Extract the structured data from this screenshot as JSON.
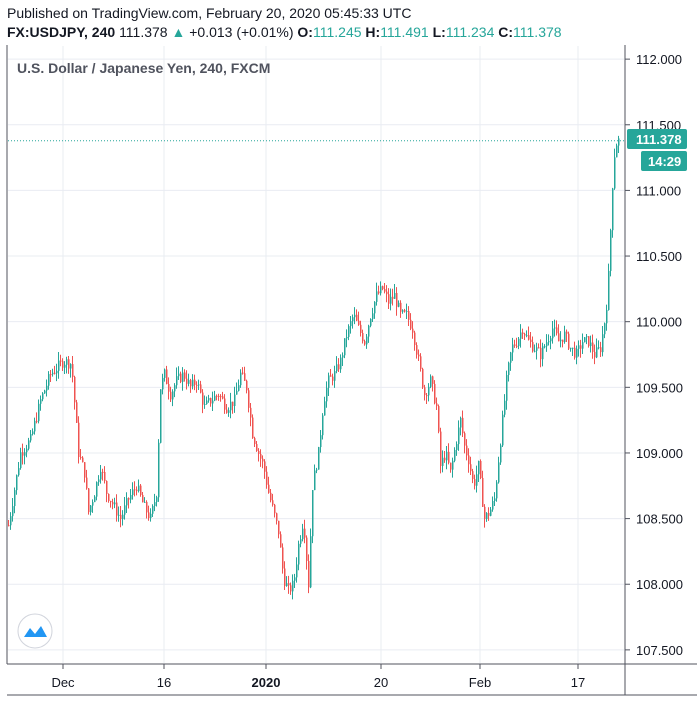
{
  "header": {
    "published": "Published on TradingView.com, February 20, 2020 05:45:33 UTC",
    "symbol": "FX:USDJPY, 240",
    "last": "111.378",
    "change_arrow": "▲",
    "change": "+0.013 (+0.01%)",
    "open_key": "O:",
    "open": "111.245",
    "high_key": "H:",
    "high": "111.491",
    "low_key": "L:",
    "low": "111.234",
    "close_key": "C:",
    "close": "111.378"
  },
  "colors": {
    "up": "#26a69a",
    "down": "#ef5350",
    "grid": "#e9ecf2",
    "price_line": "#26a69a",
    "axis_border": "#50535e"
  },
  "chart_data": {
    "type": "candlestick",
    "title": "U.S. Dollar / Japanese Yen, 240, FXCM",
    "ylim": [
      107.4,
      112.1
    ],
    "y_ticks": [
      "112.000",
      "111.500",
      "111.000",
      "110.500",
      "110.000",
      "109.500",
      "109.000",
      "108.500",
      "108.000",
      "107.500"
    ],
    "x_ticks": [
      "Dec",
      "16",
      "2020",
      "20",
      "Feb",
      "17"
    ],
    "last_price_label": "111.378",
    "countdown_label": "14:29",
    "last_price": 111.378,
    "grid": true,
    "path": [
      [
        0,
        108.45
      ],
      [
        12,
        109.0
      ],
      [
        22,
        109.1
      ],
      [
        32,
        109.4
      ],
      [
        42,
        109.6
      ],
      [
        55,
        109.7
      ],
      [
        63,
        109.68
      ],
      [
        70,
        109.0
      ],
      [
        76,
        108.85
      ],
      [
        80,
        108.55
      ],
      [
        86,
        108.7
      ],
      [
        92,
        108.9
      ],
      [
        98,
        108.7
      ],
      [
        105,
        108.6
      ],
      [
        112,
        108.5
      ],
      [
        120,
        108.65
      ],
      [
        128,
        108.75
      ],
      [
        135,
        108.6
      ],
      [
        142,
        108.5
      ],
      [
        148,
        108.7
      ],
      [
        152,
        109.5
      ],
      [
        156,
        109.6
      ],
      [
        162,
        109.45
      ],
      [
        168,
        109.55
      ],
      [
        175,
        109.6
      ],
      [
        182,
        109.5
      ],
      [
        188,
        109.55
      ],
      [
        196,
        109.35
      ],
      [
        202,
        109.4
      ],
      [
        210,
        109.45
      ],
      [
        218,
        109.35
      ],
      [
        226,
        109.4
      ],
      [
        232,
        109.6
      ],
      [
        238,
        109.5
      ],
      [
        244,
        109.15
      ],
      [
        250,
        109.0
      ],
      [
        255,
        108.9
      ],
      [
        260,
        108.7
      ],
      [
        265,
        108.55
      ],
      [
        270,
        108.4
      ],
      [
        275,
        108.05
      ],
      [
        280,
        107.95
      ],
      [
        285,
        108.0
      ],
      [
        290,
        108.3
      ],
      [
        295,
        108.5
      ],
      [
        300,
        108.0
      ],
      [
        304,
        108.75
      ],
      [
        310,
        109.0
      ],
      [
        315,
        109.4
      ],
      [
        320,
        109.55
      ],
      [
        326,
        109.6
      ],
      [
        332,
        109.7
      ],
      [
        338,
        109.9
      ],
      [
        345,
        110.05
      ],
      [
        350,
        109.95
      ],
      [
        356,
        109.85
      ],
      [
        362,
        110.05
      ],
      [
        368,
        110.2
      ],
      [
        374,
        110.25
      ],
      [
        380,
        110.15
      ],
      [
        386,
        110.2
      ],
      [
        392,
        110.05
      ],
      [
        398,
        110.05
      ],
      [
        404,
        109.95
      ],
      [
        410,
        109.7
      ],
      [
        416,
        109.45
      ],
      [
        422,
        109.55
      ],
      [
        428,
        109.35
      ],
      [
        432,
        108.9
      ],
      [
        437,
        109.0
      ],
      [
        442,
        108.85
      ],
      [
        448,
        109.1
      ],
      [
        452,
        109.25
      ],
      [
        456,
        109.05
      ],
      [
        460,
        108.95
      ],
      [
        465,
        108.75
      ],
      [
        470,
        108.9
      ],
      [
        476,
        108.5
      ],
      [
        481,
        108.55
      ],
      [
        486,
        108.65
      ],
      [
        490,
        108.95
      ],
      [
        494,
        109.25
      ],
      [
        498,
        109.55
      ],
      [
        503,
        109.8
      ],
      [
        508,
        109.85
      ],
      [
        514,
        109.95
      ],
      [
        520,
        109.85
      ],
      [
        526,
        109.8
      ],
      [
        532,
        109.75
      ],
      [
        538,
        109.85
      ],
      [
        544,
        109.95
      ],
      [
        550,
        109.85
      ],
      [
        556,
        109.9
      ],
      [
        562,
        109.8
      ],
      [
        568,
        109.75
      ],
      [
        574,
        109.85
      ],
      [
        580,
        109.85
      ],
      [
        586,
        109.75
      ],
      [
        592,
        109.8
      ],
      [
        596,
        110.0
      ],
      [
        599,
        110.2
      ],
      [
        601,
        110.5
      ],
      [
        603,
        110.9
      ],
      [
        605,
        111.2
      ],
      [
        607,
        111.35
      ],
      [
        610,
        111.38
      ]
    ]
  }
}
